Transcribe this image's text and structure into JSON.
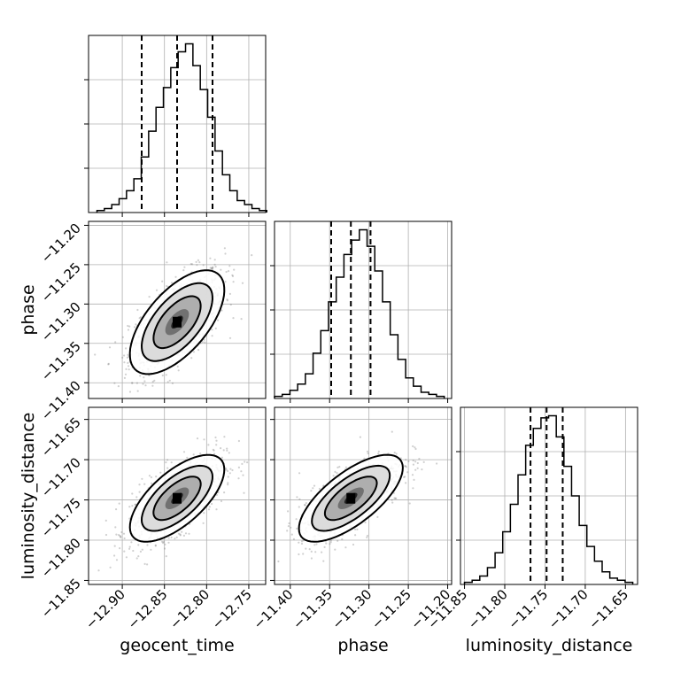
{
  "chart_data": {
    "type": "corner",
    "parameters": [
      "geocent_time",
      "phase",
      "luminosity_distance"
    ],
    "labels": {
      "geocent_time": "geocent_time",
      "phase": "phase",
      "luminosity_distance": "luminosity_distance"
    },
    "ranges": {
      "geocent_time": [
        -12.94,
        -12.73
      ],
      "phase": [
        -11.42,
        -11.195
      ],
      "luminosity_distance": [
        -11.855,
        -11.635
      ]
    },
    "ticks": {
      "geocent_time": [
        -12.9,
        -12.85,
        -12.8,
        -12.75
      ],
      "phase": [
        -11.4,
        -11.35,
        -11.3,
        -11.25,
        -11.2
      ],
      "luminosity_distance": [
        -11.85,
        -11.8,
        -11.75,
        -11.7,
        -11.65
      ]
    },
    "tick_labels": {
      "geocent_time": [
        "−12.90",
        "−12.85",
        "−12.80",
        "−12.75"
      ],
      "phase": [
        "−11.40",
        "−11.35",
        "−11.30",
        "−11.25",
        "−11.20"
      ],
      "luminosity_distance": [
        "−11.85",
        "−11.80",
        "−11.75",
        "−11.70",
        "−11.65"
      ]
    },
    "quantiles": {
      "geocent_time": [
        -12.877,
        -12.835,
        -12.793
      ],
      "phase": [
        -11.348,
        -11.323,
        -11.298
      ],
      "luminosity_distance": [
        -11.768,
        -11.748,
        -11.728
      ]
    },
    "histograms": {
      "geocent_time": {
        "x_start": -12.93,
        "bin_width": 0.00875,
        "counts": [
          1,
          2,
          4,
          7,
          11,
          17,
          28,
          41,
          53,
          63,
          73,
          81,
          85,
          74,
          62,
          48,
          31,
          19,
          11,
          6,
          4,
          2,
          1
        ]
      },
      "phase": {
        "x_start": -11.42,
        "bin_width": 0.0098,
        "counts": [
          1,
          2,
          4,
          7,
          12,
          22,
          33,
          47,
          59,
          70,
          77,
          82,
          74,
          62,
          47,
          31,
          19,
          10,
          6,
          3,
          2,
          1
        ]
      },
      "luminosity_distance": {
        "x_start": -11.85,
        "bin_width": 0.0095,
        "counts": [
          1,
          2,
          4,
          8,
          15,
          25,
          38,
          52,
          66,
          74,
          79,
          80,
          70,
          56,
          42,
          28,
          18,
          11,
          6,
          3,
          2,
          1
        ]
      }
    },
    "joint_2d": [
      {
        "x": "geocent_time",
        "y": "phase",
        "center": [
          -12.835,
          -11.323
        ],
        "sigma": [
          0.028,
          0.033
        ],
        "correlation": 0.62
      },
      {
        "x": "geocent_time",
        "y": "luminosity_distance",
        "center": [
          -12.835,
          -11.748
        ],
        "sigma": [
          0.028,
          0.027
        ],
        "correlation": 0.66
      },
      {
        "x": "phase",
        "y": "luminosity_distance",
        "center": [
          -11.323,
          -11.748
        ],
        "sigma": [
          0.033,
          0.027
        ],
        "correlation": 0.7
      }
    ],
    "contour_levels_sigma": [
      0.5,
      1.0,
      1.5,
      2.0
    ],
    "grid": true
  }
}
